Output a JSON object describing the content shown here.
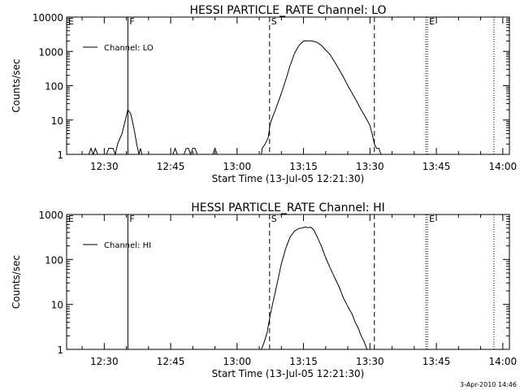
{
  "chart_data": [
    {
      "type": "line",
      "title": "HESSI PARTICLE_RATE Channel: LO",
      "xlabel": "Start Time (13-Jul-05 12:21:30)",
      "ylabel": "Counts/sec",
      "yscale": "log",
      "ylim": [
        1,
        10000
      ],
      "xlim": [
        "12:21:30",
        "14:01:30"
      ],
      "x_ticks": [
        "12:30",
        "12:45",
        "13:00",
        "13:15",
        "13:30",
        "13:45",
        "14:00"
      ],
      "y_ticks": [
        "1",
        "10",
        "100",
        "1000",
        "10000"
      ],
      "legend": {
        "position": "top-left",
        "entries": [
          "Channel: LO"
        ]
      },
      "markers": [
        {
          "label": "E",
          "time": "12:21:30",
          "style": "none"
        },
        {
          "label": "F",
          "time": "12:35:20",
          "style": "solid"
        },
        {
          "label": "S",
          "time": "13:07:20",
          "style": "dashed"
        },
        {
          "label": "",
          "time": "13:31:00",
          "style": "dashed"
        },
        {
          "label": "E",
          "time": "13:43:00",
          "style": "dotted"
        },
        {
          "label": "",
          "time": "13:58:00",
          "style": "dotted"
        }
      ],
      "series": [
        {
          "name": "Channel: LO",
          "x": [
            "12:21:30",
            "12:26:30",
            "12:27:00",
            "12:27:30",
            "12:28:00",
            "12:28:30",
            "12:30:30",
            "12:31:00",
            "12:31:30",
            "12:32:00",
            "12:32:30",
            "12:33:00",
            "12:34:00",
            "12:34:40",
            "12:35:20",
            "12:36:00",
            "12:36:40",
            "12:37:20",
            "12:37:50",
            "12:38:10",
            "12:38:30",
            "12:39:00",
            "12:40:00",
            "12:45:30",
            "12:46:00",
            "12:46:30",
            "12:48:00",
            "12:48:30",
            "12:49:00",
            "12:49:30",
            "12:50:00",
            "12:50:30",
            "12:51:00",
            "12:53:00",
            "12:54:30",
            "12:55:00",
            "12:55:30",
            "13:05:30",
            "13:05:40",
            "13:06:20",
            "13:07:00",
            "13:07:30",
            "13:08:00",
            "13:08:40",
            "13:09:20",
            "13:10:00",
            "13:11:00",
            "13:12:00",
            "13:13:00",
            "13:14:00",
            "13:15:00",
            "13:16:00",
            "13:17:00",
            "13:18:00",
            "13:19:00",
            "13:20:00",
            "13:21:00",
            "13:22:00",
            "13:23:00",
            "13:24:00",
            "13:25:00",
            "13:26:00",
            "13:27:00",
            "13:28:00",
            "13:29:00",
            "13:30:00",
            "13:30:30",
            "13:31:00",
            "13:31:30",
            "13:32:00",
            "13:32:30"
          ],
          "y": [
            1,
            1,
            1.5,
            1,
            1.5,
            1,
            1,
            1.5,
            1.5,
            1.5,
            1,
            2,
            4,
            9,
            20,
            15,
            6,
            2,
            1,
            1.5,
            1,
            1,
            1,
            1,
            1.5,
            1,
            1,
            1.5,
            1.5,
            1,
            1.5,
            1.5,
            1,
            1,
            1,
            1.5,
            1,
            1,
            1.5,
            2,
            3,
            8,
            12,
            20,
            35,
            60,
            150,
            400,
            900,
            1500,
            2000,
            2050,
            2000,
            1850,
            1500,
            1100,
            800,
            500,
            300,
            180,
            100,
            60,
            35,
            20,
            12,
            7,
            4,
            2,
            1.5,
            1.5,
            1
          ]
        }
      ]
    },
    {
      "type": "line",
      "title": "HESSI PARTICLE_RATE Channel: HI",
      "xlabel": "Start Time (13-Jul-05 12:21:30)",
      "ylabel": "Counts/sec",
      "yscale": "log",
      "ylim": [
        1,
        1000
      ],
      "xlim": [
        "12:21:30",
        "14:01:30"
      ],
      "x_ticks": [
        "12:30",
        "12:45",
        "13:00",
        "13:15",
        "13:30",
        "13:45",
        "14:00"
      ],
      "y_ticks": [
        "1",
        "10",
        "100",
        "1000"
      ],
      "legend": {
        "position": "top-left",
        "entries": [
          "Channel: HI"
        ]
      },
      "markers": [
        {
          "label": "E",
          "time": "12:21:30",
          "style": "none"
        },
        {
          "label": "F",
          "time": "12:35:20",
          "style": "solid"
        },
        {
          "label": "S",
          "time": "13:07:20",
          "style": "dashed"
        },
        {
          "label": "",
          "time": "13:31:00",
          "style": "dashed"
        },
        {
          "label": "E",
          "time": "13:43:00",
          "style": "dotted"
        },
        {
          "label": "",
          "time": "13:58:00",
          "style": "dotted"
        }
      ],
      "series": [
        {
          "name": "Channel: HI",
          "x": [
            "13:05:30",
            "13:06:10",
            "13:06:50",
            "13:07:30",
            "13:08:00",
            "13:08:40",
            "13:09:20",
            "13:10:00",
            "13:11:00",
            "13:12:00",
            "13:13:00",
            "13:14:00",
            "13:14:40",
            "13:15:20",
            "13:16:00",
            "13:16:40",
            "13:17:20",
            "13:18:00",
            "13:19:00",
            "13:20:00",
            "13:21:00",
            "13:22:00",
            "13:23:00",
            "13:24:00",
            "13:25:00",
            "13:26:00",
            "13:26:40",
            "13:27:20",
            "13:28:00",
            "13:28:40",
            "13:29:20"
          ],
          "y": [
            1,
            1.5,
            2.5,
            6,
            10,
            20,
            40,
            80,
            180,
            320,
            430,
            490,
            500,
            530,
            510,
            520,
            450,
            330,
            200,
            110,
            65,
            40,
            25,
            14,
            9,
            6,
            4,
            3,
            2,
            1.5,
            1
          ]
        }
      ]
    }
  ],
  "footer": "3-Apr-2010 14:46"
}
